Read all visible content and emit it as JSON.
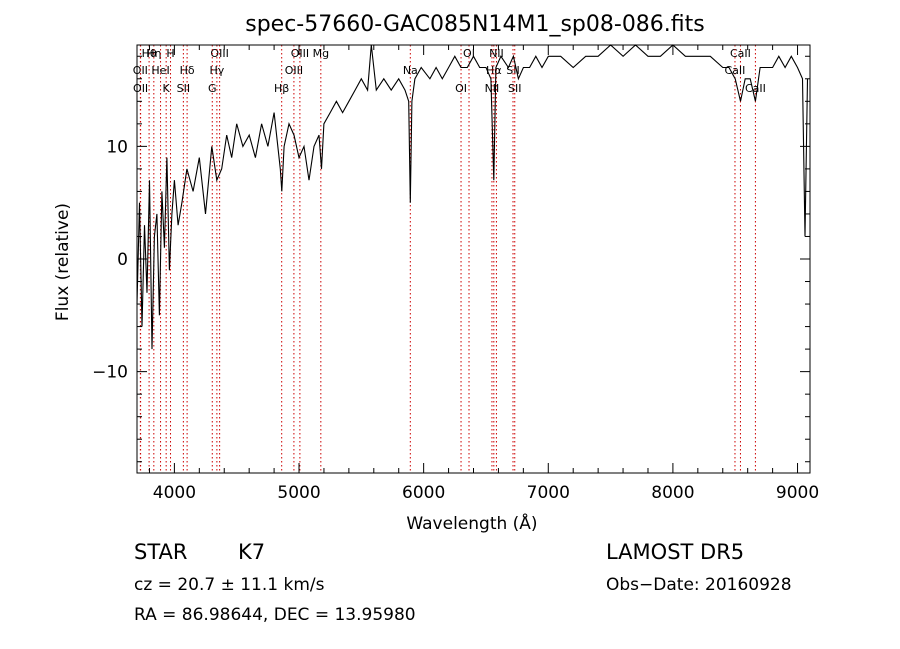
{
  "chart_data": {
    "type": "line",
    "title": "spec-57660-GAC085N14M1_sp08-086.fits",
    "xlabel": "Wavelength (Å)",
    "ylabel": "Flux (relative)",
    "xlim": [
      3700,
      9100
    ],
    "ylim": [
      -19,
      19
    ],
    "xticks": [
      4000,
      5000,
      6000,
      7000,
      8000,
      9000
    ],
    "xtick_labels": [
      "4000",
      "5000",
      "6000",
      "7000",
      "8000",
      "9000"
    ],
    "yticks": [
      -10,
      0,
      10
    ],
    "ytick_labels": [
      "−10",
      "0",
      "10"
    ],
    "grid": false,
    "series": [
      {
        "color": "#000000",
        "x": [
          3700,
          3720,
          3740,
          3760,
          3780,
          3800,
          3820,
          3840,
          3860,
          3880,
          3900,
          3920,
          3940,
          3960,
          3980,
          4000,
          4030,
          4060,
          4100,
          4150,
          4200,
          4250,
          4300,
          4340,
          4380,
          4420,
          4460,
          4500,
          4550,
          4600,
          4650,
          4700,
          4750,
          4800,
          4850,
          4862,
          4880,
          4920,
          4960,
          5000,
          5040,
          5080,
          5120,
          5160,
          5180,
          5200,
          5250,
          5300,
          5350,
          5400,
          5450,
          5500,
          5550,
          5580,
          5620,
          5680,
          5740,
          5800,
          5850,
          5880,
          5893,
          5906,
          5930,
          5980,
          6050,
          6100,
          6150,
          6200,
          6250,
          6300,
          6350,
          6400,
          6450,
          6500,
          6540,
          6563,
          6580,
          6620,
          6680,
          6720,
          6760,
          6800,
          6850,
          6900,
          6950,
          7000,
          7100,
          7200,
          7300,
          7400,
          7500,
          7600,
          7700,
          7800,
          7900,
          8000,
          8100,
          8200,
          8300,
          8400,
          8450,
          8500,
          8542,
          8580,
          8620,
          8662,
          8700,
          8750,
          8800,
          8850,
          8900,
          8950,
          9000,
          9040,
          9060,
          9080
        ],
        "y": [
          -4,
          5,
          -6,
          3,
          -3,
          7,
          -8,
          2,
          4,
          -5,
          6,
          1,
          9,
          -1,
          4,
          7,
          3,
          5,
          8,
          6,
          9,
          4,
          10,
          7,
          8,
          11,
          9,
          12,
          10,
          11,
          9,
          12,
          10,
          13,
          8,
          6,
          10,
          12,
          11,
          9,
          10,
          7,
          10,
          11,
          8,
          12,
          13,
          14,
          13,
          14,
          15,
          16,
          15,
          19,
          15,
          16,
          15,
          16,
          15,
          14,
          5,
          14,
          16,
          17,
          16,
          17,
          16,
          17,
          18,
          17,
          17,
          18,
          17,
          17,
          16,
          7,
          17,
          18,
          17,
          18,
          16,
          17,
          17,
          18,
          17,
          18,
          18,
          17,
          18,
          18,
          19,
          18,
          19,
          18,
          18,
          19,
          18,
          18,
          18,
          17,
          17,
          16,
          14,
          16,
          16,
          14,
          17,
          17,
          17,
          18,
          17,
          18,
          17,
          16,
          2,
          16
        ]
      }
    ],
    "annotations": [
      {
        "label": "Hθ",
        "x": 3797
      },
      {
        "label": "OII",
        "x": 3727
      },
      {
        "label": "OII",
        "x": 3729
      },
      {
        "label": "Hη",
        "x": 3835
      },
      {
        "label": "HeI",
        "x": 3889
      },
      {
        "label": "K",
        "x": 3934
      },
      {
        "label": "H",
        "x": 3969
      },
      {
        "label": "Hδ",
        "x": 4102
      },
      {
        "label": "SII",
        "x": 4072
      },
      {
        "label": "OIII",
        "x": 4363
      },
      {
        "label": "Hγ",
        "x": 4341
      },
      {
        "label": "G",
        "x": 4304
      },
      {
        "label": "OIII",
        "x": 5007
      },
      {
        "label": "OIII",
        "x": 4959
      },
      {
        "label": "Hβ",
        "x": 4861
      },
      {
        "label": "Mg",
        "x": 5175
      },
      {
        "label": "Na",
        "x": 5893
      },
      {
        "label": "OI",
        "x": 6300
      },
      {
        "label": "OI",
        "x": 6364
      },
      {
        "label": "Hα",
        "x": 6563
      },
      {
        "label": "NII",
        "x": 6548
      },
      {
        "label": "NII",
        "x": 6584
      },
      {
        "label": "SII",
        "x": 6717
      },
      {
        "label": "SII",
        "x": 6731
      },
      {
        "label": "CaII",
        "x": 8542
      },
      {
        "label": "CaII",
        "x": 8498
      },
      {
        "label": "CaII",
        "x": 8662
      }
    ]
  },
  "info": {
    "class_label": "STAR",
    "subclass_label": "K7",
    "survey": "LAMOST DR5",
    "cz": "cz = 20.7 ± 11.1 km/s",
    "obs_date": "Obs−Date: 20160928",
    "radec": "RA =  86.98644, DEC =  13.95980"
  }
}
